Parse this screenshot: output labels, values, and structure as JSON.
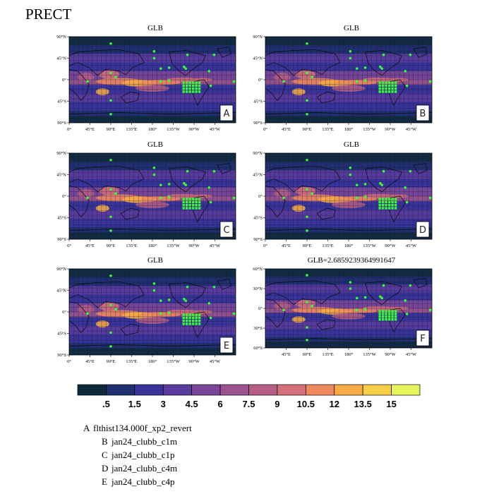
{
  "title": "PRECT",
  "panels": [
    {
      "letter": "A",
      "title": "GLB",
      "lat_ticks": [
        "90°N",
        "45°N",
        "0°",
        "45°S",
        "90°S"
      ],
      "lon_ticks": [
        "0°",
        "45°E",
        "90°E",
        "135°E",
        "180°",
        "135°W",
        "90°W",
        "45°W"
      ]
    },
    {
      "letter": "B",
      "title": "GLB",
      "lat_ticks": [
        "90°N",
        "45°N",
        "0°",
        "45°S",
        "90°S"
      ],
      "lon_ticks": [
        "0°",
        "45°E",
        "90°E",
        "135°E",
        "180°",
        "135°W",
        "90°W",
        "45°W"
      ]
    },
    {
      "letter": "C",
      "title": "GLB",
      "lat_ticks": [
        "90°N",
        "45°N",
        "0°",
        "45°S",
        "90°S"
      ],
      "lon_ticks": [
        "0°",
        "45°E",
        "90°E",
        "135°E",
        "180°",
        "135°W",
        "90°W",
        "45°W"
      ]
    },
    {
      "letter": "D",
      "title": "GLB",
      "lat_ticks": [
        "90°N",
        "45°N",
        "0°",
        "45°S",
        "90°S"
      ],
      "lon_ticks": [
        "0°",
        "45°E",
        "90°E",
        "135°E",
        "180°",
        "135°W",
        "90°W",
        "45°W"
      ]
    },
    {
      "letter": "E",
      "title": "GLB",
      "lat_ticks": [
        "90°N",
        "45°N",
        "0°",
        "45°S",
        "90°S"
      ],
      "lon_ticks": [
        "0°",
        "45°E",
        "90°E",
        "135°E",
        "180°",
        "135°W",
        "90°W",
        "45°W"
      ]
    },
    {
      "letter": "F",
      "title": "GLB=2.6859239364991647",
      "lat_ticks": [
        "60°N",
        "30°N",
        "0°",
        "30°S",
        "60°S"
      ],
      "lon_ticks": [
        "45°E",
        "90°E",
        "135°E",
        "180°",
        "135°W",
        "90°W",
        "45°W"
      ]
    }
  ],
  "colorbar": {
    "labels": [
      ".5",
      "1.5",
      "3",
      "4.5",
      "6",
      "7.5",
      "9",
      "10.5",
      "12",
      "13.5",
      "15"
    ],
    "colors": [
      "#0d2a3c",
      "#1d2f6e",
      "#39339a",
      "#5a3b9e",
      "#7b4699",
      "#9a538f",
      "#b55e86",
      "#d4707a",
      "#ef8a60",
      "#f8ac45",
      "#f6cf48",
      "#e5f45a"
    ]
  },
  "legend": [
    {
      "key": "A",
      "label": "flthist134.000f_xp2_revert"
    },
    {
      "key": "B",
      "label": "jan24_clubb_c1m"
    },
    {
      "key": "C",
      "label": "jan24_clubb_c1p"
    },
    {
      "key": "D",
      "label": "jan24_clubb_c4m"
    },
    {
      "key": "E",
      "label": "jan24_clubb_c4p"
    }
  ],
  "chart_data": {
    "type": "heatmap",
    "title": "PRECT",
    "panels": [
      "A",
      "B",
      "C",
      "D",
      "E",
      "F"
    ],
    "panel_titles": [
      "GLB",
      "GLB",
      "GLB",
      "GLB",
      "GLB",
      "GLB=2.6859239364991647"
    ],
    "xlim": [
      0,
      360
    ],
    "ylim": [
      -90,
      90
    ],
    "x_ticks": [
      "0°",
      "45°E",
      "90°E",
      "135°E",
      "180°",
      "135°W",
      "90°W",
      "45°W"
    ],
    "y_ticks": [
      "90°N",
      "45°N",
      "0°",
      "45°S",
      "90°S"
    ],
    "colorbar_levels": [
      0.5,
      1.5,
      3,
      4.5,
      6,
      7.5,
      9,
      10.5,
      12,
      13.5,
      15
    ],
    "series": [
      {
        "name": "flthist134.000f_xp2_revert"
      },
      {
        "name": "jan24_clubb_c1m"
      },
      {
        "name": "jan24_clubb_c1p"
      },
      {
        "name": "jan24_clubb_c4m"
      },
      {
        "name": "jan24_clubb_c4p"
      }
    ]
  }
}
